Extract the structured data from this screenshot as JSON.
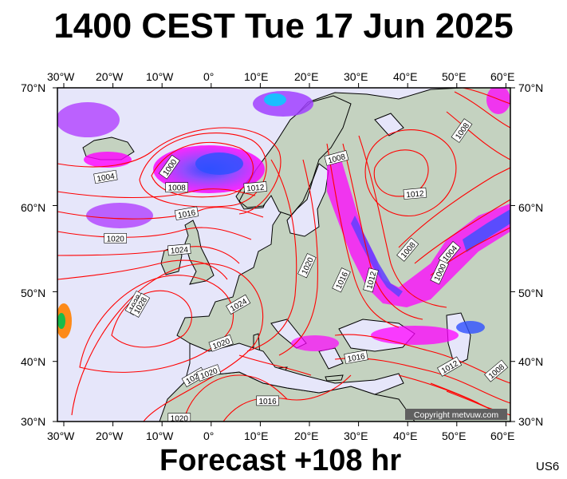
{
  "header": {
    "title": "1400 CEST Tue 17 Jun 2025"
  },
  "footer": {
    "forecast": "Forecast +108 hr",
    "code": "US6"
  },
  "map": {
    "copyright": "Copyright metvuw.com",
    "lon_labels": [
      "30°W",
      "20°W",
      "10°W",
      "0°",
      "10°E",
      "20°E",
      "30°E",
      "40°E",
      "50°E",
      "60°E"
    ],
    "lat_labels": [
      "70°N",
      "60°N",
      "50°N",
      "40°N",
      "30°N"
    ],
    "isobar_labels": [
      {
        "text": "1000",
        "lon": -8.5,
        "lat": 63.7,
        "rot": -55
      },
      {
        "text": "1004",
        "lon": -21.5,
        "lat": 62.8,
        "rot": -10
      },
      {
        "text": "1008",
        "lon": -7,
        "lat": 61.8,
        "rot": 0
      },
      {
        "text": "1012",
        "lon": 9,
        "lat": 61.8,
        "rot": -5
      },
      {
        "text": "1016",
        "lon": -5,
        "lat": 59.2,
        "rot": -10
      },
      {
        "text": "1020",
        "lon": -19.5,
        "lat": 56.5,
        "rot": 0
      },
      {
        "text": "1024",
        "lon": -6.5,
        "lat": 55.2,
        "rot": -5
      },
      {
        "text": "1028",
        "lon": -15.5,
        "lat": 48.5,
        "rot": -60
      },
      {
        "text": "1028",
        "lon": -14.5,
        "lat": 48.2,
        "rot": -60
      },
      {
        "text": "1024",
        "lon": 5.5,
        "lat": 48.3,
        "rot": -30
      },
      {
        "text": "1020",
        "lon": 2,
        "lat": 42.8,
        "rot": -20
      },
      {
        "text": "1020",
        "lon": -3.5,
        "lat": 37.5,
        "rot": -30
      },
      {
        "text": "1020",
        "lon": -0.5,
        "lat": 38.2,
        "rot": -20
      },
      {
        "text": "1020",
        "lon": -6.5,
        "lat": 30.6,
        "rot": 0
      },
      {
        "text": "1016",
        "lon": 11.5,
        "lat": 33.6,
        "rot": 0
      },
      {
        "text": "1020",
        "lon": 19.5,
        "lat": 53.3,
        "rot": -65
      },
      {
        "text": "1008",
        "lon": 25.5,
        "lat": 64.5,
        "rot": -15
      },
      {
        "text": "1016",
        "lon": 26.5,
        "lat": 51.5,
        "rot": -65
      },
      {
        "text": "1012",
        "lon": 32.5,
        "lat": 51.5,
        "rot": -75
      },
      {
        "text": "1016",
        "lon": 29.5,
        "lat": 40.7,
        "rot": -10
      },
      {
        "text": "1012",
        "lon": 41.5,
        "lat": 61.2,
        "rot": -5
      },
      {
        "text": "1008",
        "lon": 40,
        "lat": 55.2,
        "rot": -50
      },
      {
        "text": "1004",
        "lon": 48.5,
        "lat": 54.8,
        "rot": -50
      },
      {
        "text": "1000",
        "lon": 46.5,
        "lat": 52.5,
        "rot": -65
      },
      {
        "text": "1008",
        "lon": 51,
        "lat": 66.8,
        "rot": -55
      },
      {
        "text": "1012",
        "lon": 48.5,
        "lat": 39.2,
        "rot": -30
      },
      {
        "text": "1008",
        "lon": 58,
        "lat": 38.5,
        "rot": -40
      }
    ]
  },
  "colors": {
    "background": "#e6e6fa",
    "land": "#c4d2c0",
    "isobar": "#ff0000",
    "coast": "#000000",
    "precip_magenta": "#ff00ff",
    "precip_violet": "#a040ff",
    "precip_blue": "#3050ff",
    "precip_cyan": "#00e0ff"
  }
}
